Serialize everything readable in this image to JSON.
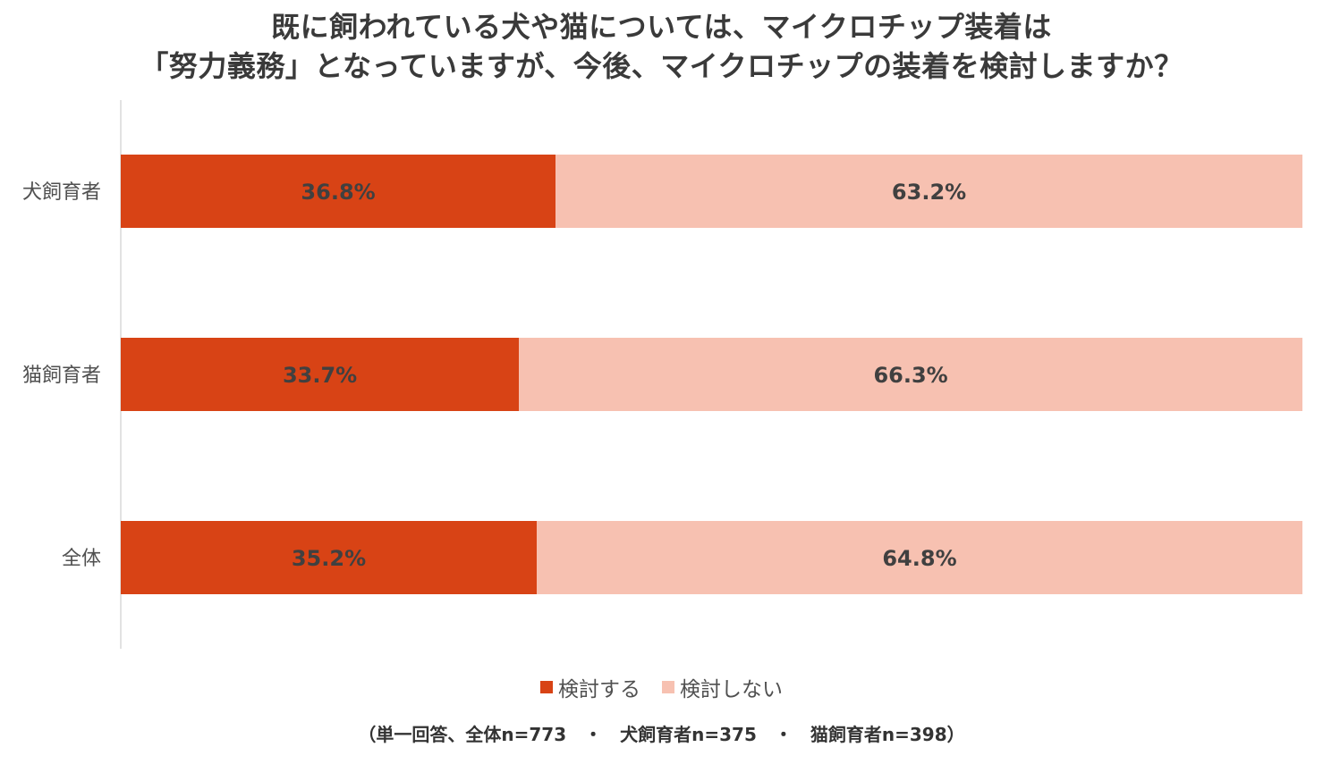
{
  "chart_data": {
    "type": "bar",
    "orientation": "horizontal",
    "stacked": true,
    "percent_stacked": true,
    "title_lines": [
      "既に飼われている犬や猫については、マイクロチップ装着は",
      "「努力義務」となっていますが、今後、マイクロチップの装着を検討しますか？"
    ],
    "categories": [
      "犬飼育者",
      "猫飼育者",
      "全体"
    ],
    "series": [
      {
        "name": "検討する",
        "values": [
          36.8,
          33.7,
          35.2
        ],
        "labels": [
          "36.8%",
          "33.7%",
          "35.2%"
        ],
        "color": "#d84315"
      },
      {
        "name": "検討しない",
        "values": [
          63.2,
          66.3,
          64.8
        ],
        "labels": [
          "63.2%",
          "66.3%",
          "64.8%"
        ],
        "color": "#f7c1b1"
      }
    ],
    "xlim": [
      0,
      100
    ],
    "grid": false,
    "legend_position": "bottom",
    "footnote": "（単一回答、全体n=773　・　犬飼育者n=375　・　猫飼育者n=398）"
  }
}
